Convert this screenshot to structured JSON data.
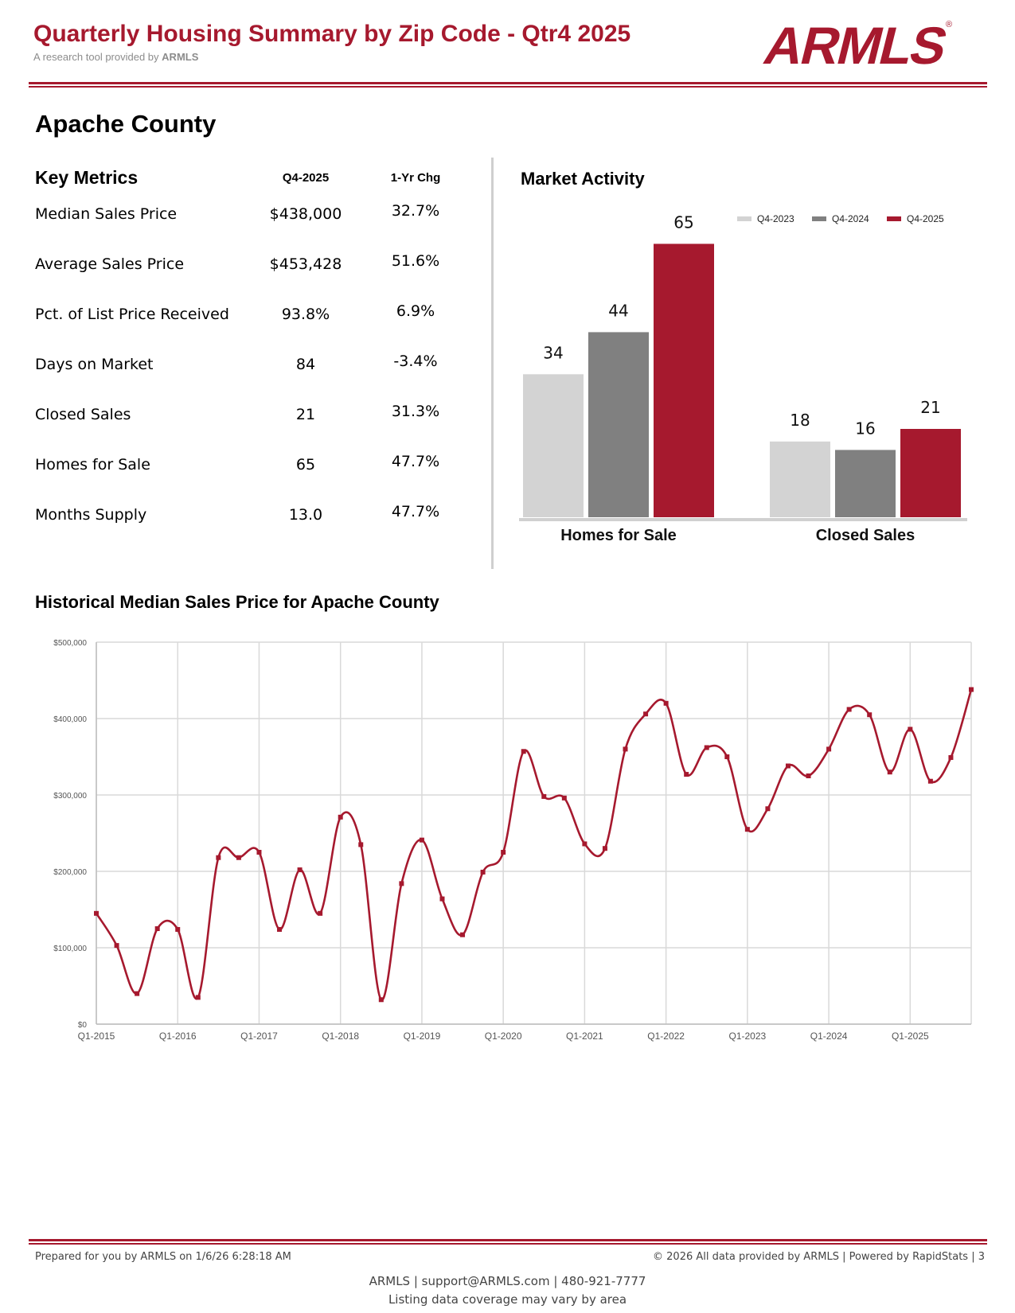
{
  "header": {
    "title": "Quarterly Housing Summary by Zip Code - Qtr4 2025",
    "subtitle_prefix": "A research tool provided by",
    "subtitle_brand": "ARMLS",
    "logo_text": "ARMLS",
    "logo_mark": "®",
    "accent_color": "#a6192e"
  },
  "area": {
    "name": "Apache County"
  },
  "key_metrics": {
    "heading": "Key Metrics",
    "col_current": "Q4-2025",
    "col_change": "1-Yr Chg",
    "rows": [
      {
        "label": "Median Sales Price",
        "value": "$438,000",
        "change": "32.7%"
      },
      {
        "label": "Average Sales Price",
        "value": "$453,428",
        "change": "51.6%"
      },
      {
        "label": "Pct. of List Price Received",
        "value": "93.8%",
        "change": "6.9%"
      },
      {
        "label": "Days on Market",
        "value": "84",
        "change": "-3.4%"
      },
      {
        "label": "Closed Sales",
        "value": "21",
        "change": "31.3%"
      },
      {
        "label": "Homes for Sale",
        "value": "65",
        "change": "47.7%"
      },
      {
        "label": "Months Supply",
        "value": "13.0",
        "change": "47.7%"
      }
    ]
  },
  "market_activity": {
    "heading": "Market Activity"
  },
  "historical": {
    "heading": "Historical Median Sales Price for Apache County"
  },
  "chart_data": [
    {
      "type": "bar",
      "title": "Market Activity",
      "categories": [
        "Homes for Sale",
        "Closed Sales"
      ],
      "series": [
        {
          "name": "Q4-2023",
          "values": [
            34,
            18
          ],
          "color": "#d3d3d3"
        },
        {
          "name": "Q4-2024",
          "values": [
            44,
            16
          ],
          "color": "#808080"
        },
        {
          "name": "Q4-2025",
          "values": [
            65,
            21
          ],
          "color": "#a6192e"
        }
      ],
      "ylim": [
        0,
        70
      ],
      "legend": "top-right",
      "data_labels": true
    },
    {
      "type": "line",
      "title": "Historical Median Sales Price for Apache County",
      "x": [
        "Q1-2015",
        "Q2-2015",
        "Q3-2015",
        "Q4-2015",
        "Q1-2016",
        "Q2-2016",
        "Q3-2016",
        "Q4-2016",
        "Q1-2017",
        "Q2-2017",
        "Q3-2017",
        "Q4-2017",
        "Q1-2018",
        "Q2-2018",
        "Q3-2018",
        "Q4-2018",
        "Q1-2019",
        "Q2-2019",
        "Q3-2019",
        "Q4-2019",
        "Q1-2020",
        "Q2-2020",
        "Q3-2020",
        "Q4-2020",
        "Q1-2021",
        "Q2-2021",
        "Q3-2021",
        "Q4-2021",
        "Q1-2022",
        "Q2-2022",
        "Q3-2022",
        "Q4-2022",
        "Q1-2023",
        "Q2-2023",
        "Q3-2023",
        "Q4-2023",
        "Q1-2024",
        "Q2-2024",
        "Q3-2024",
        "Q4-2024",
        "Q1-2025",
        "Q2-2025",
        "Q3-2025",
        "Q4-2025"
      ],
      "xtick_labels": [
        "Q1-2015",
        "Q1-2016",
        "Q1-2017",
        "Q1-2018",
        "Q1-2019",
        "Q1-2020",
        "Q1-2021",
        "Q1-2022",
        "Q1-2023",
        "Q1-2024",
        "Q1-2025"
      ],
      "series": [
        {
          "name": "Median Sales Price",
          "color": "#a6192e",
          "values": [
            145000,
            103000,
            40000,
            125000,
            124000,
            35000,
            218000,
            218000,
            225000,
            124000,
            202000,
            145000,
            271000,
            235000,
            32000,
            184000,
            241000,
            164000,
            117000,
            199000,
            225000,
            357000,
            298000,
            296000,
            236000,
            230000,
            360000,
            406000,
            420000,
            327000,
            362000,
            350000,
            255000,
            282000,
            338000,
            325000,
            360000,
            412000,
            405000,
            330000,
            386000,
            318000,
            349000,
            438000
          ]
        }
      ],
      "ylim": [
        0,
        500000
      ],
      "ytick_labels": [
        "$0",
        "$100,000",
        "$200,000",
        "$300,000",
        "$400,000",
        "$500,000"
      ],
      "grid": true
    }
  ],
  "footer": {
    "prepared": "Prepared for you by ARMLS on 1/6/26 6:28:18 AM",
    "copyright": "© 2026 All data provided by ARMLS | Powered by RapidStats  | 3",
    "contact": "ARMLS | support@ARMLS.com | 480-921-7777",
    "note": "Listing data coverage may vary by area"
  }
}
